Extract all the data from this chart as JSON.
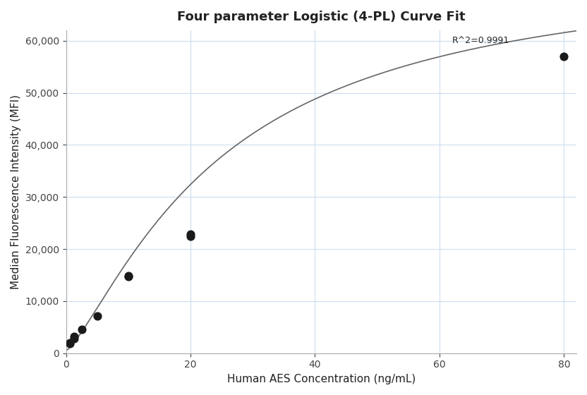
{
  "title": "Four parameter Logistic (4-PL) Curve Fit",
  "xlabel": "Human AES Concentration (ng/mL)",
  "ylabel": "Median Fluorescence Intensity (MFI)",
  "scatter_x": [
    0.625,
    0.625,
    1.25,
    1.25,
    2.5,
    5.0,
    10.0,
    10.0,
    20.0,
    20.0,
    80.0
  ],
  "scatter_y": [
    1800,
    2000,
    2800,
    3200,
    4500,
    7200,
    14700,
    14900,
    22500,
    22800,
    57000
  ],
  "r_squared": "R^2=0.9991",
  "xlim": [
    0,
    82
  ],
  "ylim": [
    0,
    62000
  ],
  "yticks": [
    0,
    10000,
    20000,
    30000,
    40000,
    50000,
    60000
  ],
  "xticks": [
    0,
    20,
    40,
    60,
    80
  ],
  "curve_color": "#666666",
  "scatter_color": "#1a1a1a",
  "background_color": "#ffffff",
  "grid_color": "#ccddee",
  "4pl_A": 500,
  "4pl_B": 1.3,
  "4pl_C": 25.0,
  "4pl_D": 75000
}
